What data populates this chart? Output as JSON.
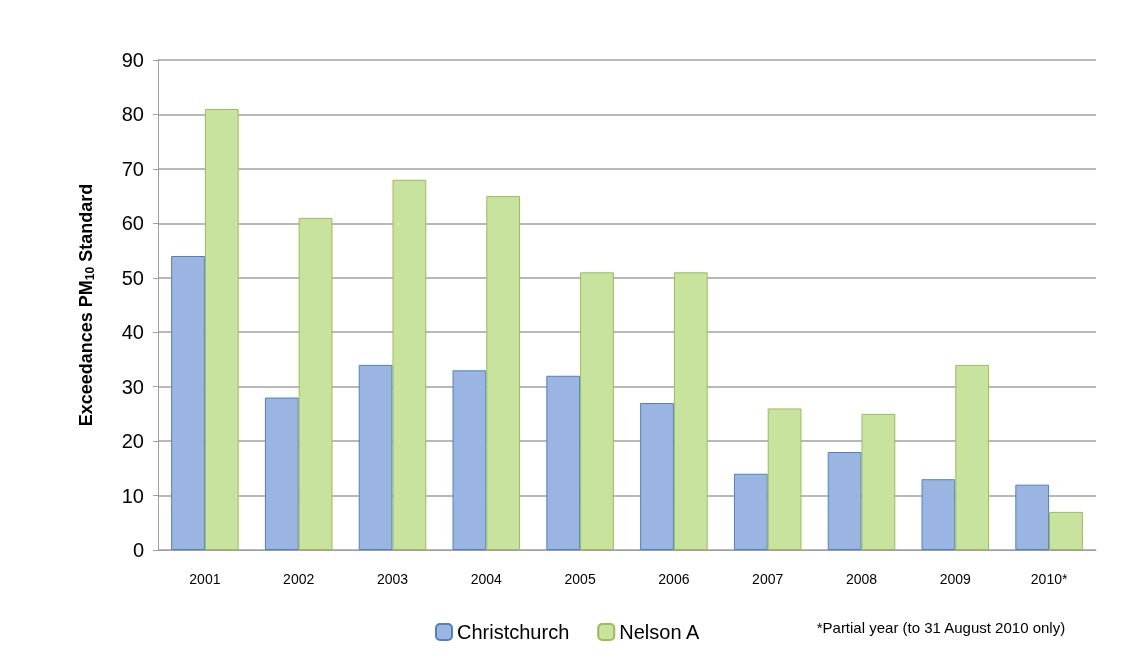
{
  "chart_data": {
    "type": "bar",
    "categories": [
      "2001",
      "2002",
      "2003",
      "2004",
      "2005",
      "2006",
      "2007",
      "2008",
      "2009",
      "2010*"
    ],
    "series": [
      {
        "name": "Christchurch",
        "color": "#9bb5e3",
        "values": [
          54,
          28,
          34,
          33,
          32,
          27,
          14,
          18,
          13,
          12
        ]
      },
      {
        "name": "Nelson A",
        "color": "#c8e39e",
        "values": [
          81,
          61,
          68,
          65,
          51,
          51,
          26,
          25,
          34,
          7
        ]
      }
    ],
    "ylabel": "Exceedances PM$_{10}$ Standard",
    "ylim": [
      0,
      90
    ],
    "yticks": [
      0,
      10,
      20,
      30,
      40,
      50,
      60,
      70,
      80,
      90
    ],
    "grid": "y",
    "legend": "bottom",
    "annotations": [
      "*Partial year (to 31 August 2010 only)"
    ]
  }
}
